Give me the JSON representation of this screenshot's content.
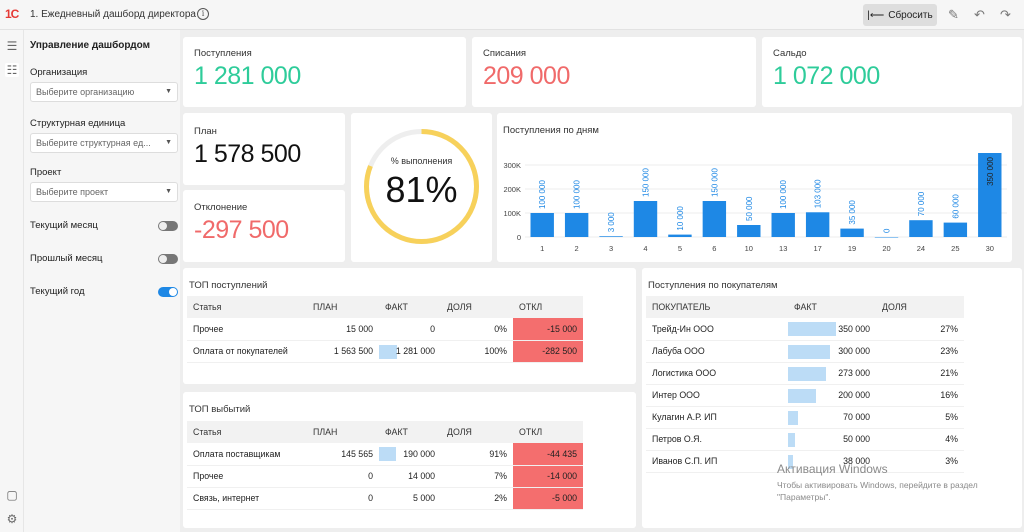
{
  "header": {
    "logo": "1С",
    "title": "1. Ежедневный дашборд директора",
    "reset_label": "Сбросить"
  },
  "sidebar": {
    "title": "Управление дашбордом",
    "filters": [
      {
        "label": "Организация",
        "placeholder": "Выберите организацию"
      },
      {
        "label": "Структурная единица",
        "placeholder": "Выберите структурная ед..."
      },
      {
        "label": "Проект",
        "placeholder": "Выберите проект"
      }
    ],
    "toggles": [
      {
        "label": "Текущий месяц",
        "on": false
      },
      {
        "label": "Прошлый месяц",
        "on": false
      },
      {
        "label": "Текущий год",
        "on": true
      }
    ]
  },
  "kpi": {
    "income": {
      "label": "Поступления",
      "value": "1 281 000"
    },
    "writeoff": {
      "label": "Списания",
      "value": "209 000"
    },
    "balance": {
      "label": "Сальдо",
      "value": "1 072 000"
    },
    "plan": {
      "label": "План",
      "value": "1 578 500"
    },
    "deviation": {
      "label": "Отклонение",
      "value": "-297 500"
    },
    "completion": {
      "label": "% выполнения",
      "value": "81%",
      "fraction": 0.81
    }
  },
  "chart_data": {
    "type": "bar",
    "title": "Поступления по дням",
    "categories": [
      "1",
      "2",
      "3",
      "4",
      "5",
      "6",
      "10",
      "13",
      "17",
      "19",
      "20",
      "24",
      "25",
      "30"
    ],
    "values": [
      100000,
      100000,
      3000,
      150000,
      10000,
      150000,
      50000,
      100000,
      103000,
      35000,
      0,
      70000,
      60000,
      350000
    ],
    "data_labels": [
      "100 000",
      "100 000",
      "3 000",
      "150 000",
      "10 000",
      "150 000",
      "50 000",
      "100 000",
      "103 000",
      "35 000",
      "0",
      "70 000",
      "60 000",
      "350 000"
    ],
    "y_ticks": [
      "0",
      "100K",
      "200K",
      "300K"
    ],
    "ylim": [
      0,
      350000
    ],
    "color": "#1e88e5"
  },
  "top_income": {
    "title": "ТОП поступлений",
    "headers": [
      "Статья",
      "ПЛАН",
      "ФАКТ",
      "ДОЛЯ",
      "ОТКЛ"
    ],
    "rows": [
      {
        "item": "Прочее",
        "plan": "15 000",
        "fact": "0",
        "share": "0%",
        "dev": "-15 000",
        "bar": 0
      },
      {
        "item": "Оплата от покупателей",
        "plan": "1 563 500",
        "fact": "1 281 000",
        "share": "100%",
        "dev": "-282 500",
        "bar": 0.52
      }
    ]
  },
  "top_outflow": {
    "title": "ТОП выбытий",
    "headers": [
      "Статья",
      "ПЛАН",
      "ФАКТ",
      "ДОЛЯ",
      "ОТКЛ"
    ],
    "rows": [
      {
        "item": "Оплата поставщикам",
        "plan": "145 565",
        "fact": "190 000",
        "share": "91%",
        "dev": "-44 435",
        "bar": 0.5
      },
      {
        "item": "Прочее",
        "plan": "0",
        "fact": "14 000",
        "share": "7%",
        "dev": "-14 000",
        "bar": 0
      },
      {
        "item": "Связь, интернет",
        "plan": "0",
        "fact": "5 000",
        "share": "2%",
        "dev": "-5 000",
        "bar": 0
      }
    ]
  },
  "buyers": {
    "title": "Поступления по покупателям",
    "headers": [
      "ПОКУПАТЕЛЬ",
      "ФАКТ",
      "ДОЛЯ"
    ],
    "rows": [
      {
        "name": "Трейд-Ин ООО",
        "fact": "350 000",
        "share": "27%",
        "bar": 1.0
      },
      {
        "name": "Лабуба ООО",
        "fact": "300 000",
        "share": "23%",
        "bar": 0.86
      },
      {
        "name": "Логистика ООО",
        "fact": "273 000",
        "share": "21%",
        "bar": 0.78
      },
      {
        "name": "Интер ООО",
        "fact": "200 000",
        "share": "16%",
        "bar": 0.57
      },
      {
        "name": "Кулагин А.Р. ИП",
        "fact": "70 000",
        "share": "5%",
        "bar": 0.2
      },
      {
        "name": "Петров О.Я.",
        "fact": "50 000",
        "share": "4%",
        "bar": 0.14
      },
      {
        "name": "Иванов С.П. ИП",
        "fact": "38 000",
        "share": "3%",
        "bar": 0.11
      }
    ]
  },
  "watermark": {
    "title": "Активация Windows",
    "line1": "Чтобы активировать Windows, перейдите в раздел",
    "line2": "\"Параметры\"."
  }
}
